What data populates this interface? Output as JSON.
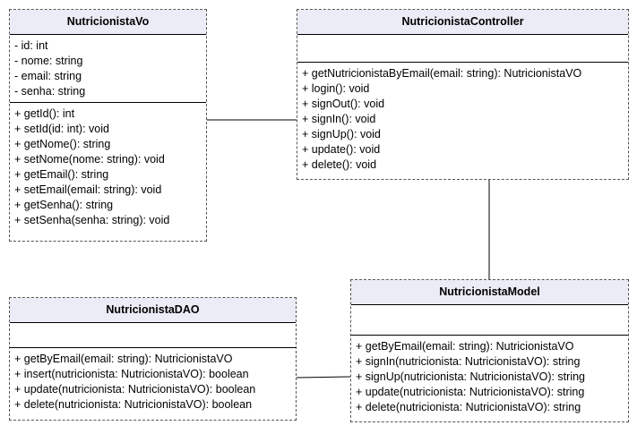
{
  "classes": {
    "vo": {
      "name": "NutricionistaVo",
      "attributes": [
        "- id: int",
        "- nome: string",
        "- email: string",
        "- senha: string"
      ],
      "methods": [
        "+ getId(): int",
        "+ setId(id: int): void",
        "+ getNome(): string",
        "+ setNome(nome: string): void",
        "+ getEmail(): string",
        "+ setEmail(email: string): void",
        "+ getSenha(): string",
        "+ setSenha(senha: string): void"
      ]
    },
    "controller": {
      "name": "NutricionistaController",
      "attributes": [],
      "methods": [
        "+ getNutricionistaByEmail(email: string): NutricionistaVO",
        "+ login(): void",
        "+ signOut(): void",
        "+ signIn(): void",
        "+ signUp(): void",
        "+ update(): void",
        "+ delete(): void"
      ]
    },
    "model": {
      "name": "NutricionistaModel",
      "attributes": [],
      "methods": [
        "+ getByEmail(email: string): NutricionistaVO",
        "+ signIn(nutricionista: NutricionistaVO): string",
        "+ signUp(nutricionista: NutricionistaVO): string",
        "+ update(nutricionista: NutricionistaVO): string",
        "+ delete(nutricionista: NutricionistaVO): string"
      ]
    },
    "dao": {
      "name": "NutricionistaDAO",
      "attributes": [],
      "methods": [
        "+ getByEmail(email: string): NutricionistaVO",
        "+ insert(nutricionista: NutricionistaVO): boolean",
        "+ update(nutricionista: NutricionistaVO): boolean",
        "+ delete(nutricionista: NutricionistaVO): boolean"
      ]
    }
  }
}
